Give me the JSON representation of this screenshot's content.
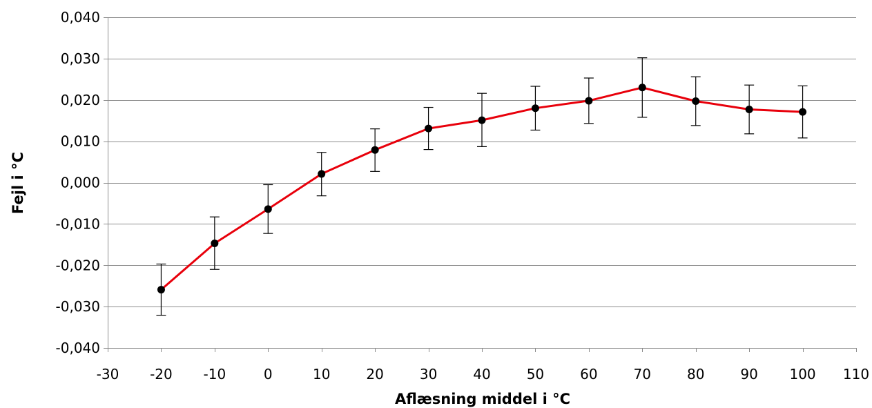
{
  "chart_data": {
    "type": "line",
    "title": "",
    "xlabel": "Aflæsning middel i °C",
    "ylabel": "Fejl i °C",
    "xlim": [
      -30,
      110
    ],
    "ylim": [
      -0.04,
      0.04
    ],
    "x_ticks": [
      "-30",
      "-20",
      "-10",
      "0",
      "10",
      "20",
      "30",
      "40",
      "50",
      "60",
      "70",
      "80",
      "90",
      "100",
      "110"
    ],
    "y_ticks": [
      "-0,040",
      "-0,030",
      "-0,020",
      "-0,010",
      "0,000",
      "0,010",
      "0,020",
      "0,030",
      "0,040"
    ],
    "grid": "horizontal",
    "legend": "none",
    "line_color": "#e8000b",
    "marker_color": "#000000",
    "errorbar_color": "#000000",
    "series": [
      {
        "x": [
          -20,
          -10,
          0,
          10,
          20,
          30,
          40,
          50,
          60,
          70,
          80,
          90,
          100
        ],
        "y": [
          -0.0259,
          -0.0147,
          -0.0064,
          0.0021,
          0.0079,
          0.0131,
          0.0151,
          0.018,
          0.0198,
          0.023,
          0.0197,
          0.0177,
          0.0171
        ],
        "y_err_upper": [
          0.0062,
          0.0064,
          0.0059,
          0.0052,
          0.0051,
          0.0051,
          0.0065,
          0.0053,
          0.0055,
          0.0072,
          0.0059,
          0.0059,
          0.0063
        ],
        "y_err_lower": [
          0.0062,
          0.0063,
          0.0059,
          0.0053,
          0.0052,
          0.0051,
          0.0064,
          0.0053,
          0.0055,
          0.0072,
          0.0059,
          0.0059,
          0.0063
        ]
      }
    ]
  }
}
